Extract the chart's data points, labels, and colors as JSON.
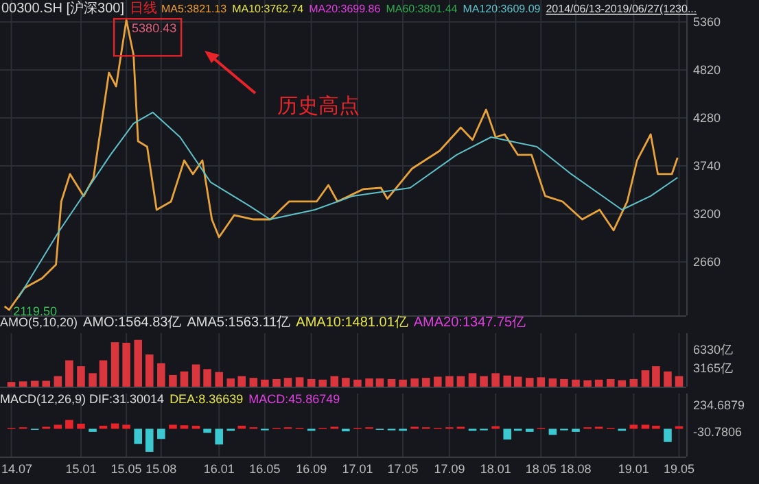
{
  "chart_data": [
    {
      "type": "line",
      "title": "00300.SH [沪深300]",
      "subtitle": "日线",
      "xlim": [
        "2014-06-01",
        "2019-05-20"
      ],
      "ylim": [
        2058,
        5607
      ],
      "yticks": [
        2660,
        3200,
        3740,
        4280,
        4820,
        5360
      ],
      "tick_labels": "y",
      "grid": true,
      "series": [
        {
          "color": "#e8a33d",
          "x": [
            "2014-06-13",
            "2014-06-25",
            "2014-08-05",
            "2014-09-20",
            "2014-10-27",
            "2014-11-10",
            "2014-12-03",
            "2015-01-08",
            "2015-02-03",
            "2015-03-16",
            "2015-04-04",
            "2015-05-01",
            "2015-05-20",
            "2015-06-01",
            "2015-06-25",
            "2015-07-20",
            "2015-08-27",
            "2015-10-01",
            "2015-10-24",
            "2015-11-18",
            "2015-12-13",
            "2016-01-01",
            "2016-02-10",
            "2016-04-01",
            "2016-05-16",
            "2016-07-04",
            "2016-09-15",
            "2016-10-16",
            "2016-11-09",
            "2017-01-16",
            "2017-03-04",
            "2017-03-21",
            "2017-05-25",
            "2017-08-06",
            "2017-10-01",
            "2017-11-01",
            "2017-12-07",
            "2018-01-01",
            "2018-01-25",
            "2018-03-01",
            "2018-04-06",
            "2018-05-12",
            "2018-06-27",
            "2018-08-18",
            "2018-10-03",
            "2018-11-09",
            "2018-12-15",
            "2019-01-10",
            "2019-02-15",
            "2019-03-06",
            "2019-04-12",
            "2019-04-27"
          ],
          "values": [
            2160,
            2119.5,
            2367,
            2475,
            2629,
            3339,
            3648,
            3400,
            3601,
            4789,
            4635,
            5380.43,
            4990,
            4018,
            3956,
            3246,
            3339,
            3802,
            3648,
            3802,
            3138,
            2938,
            3185,
            3138,
            3138,
            3339,
            3339,
            3524,
            3339,
            3478,
            3493,
            3370,
            3709,
            3910,
            4172,
            4033,
            4373,
            4064,
            4095,
            3864,
            3864,
            3401,
            3339,
            3138,
            3246,
            3015,
            3339,
            3802,
            4095,
            3648,
            3648,
            3833
          ]
        },
        {
          "name": "MA120:3609.09",
          "color": "#5fc1c9",
          "x": [
            "2014-07-20",
            "2014-11-01",
            "2015-03-20",
            "2015-05-20",
            "2015-07-10",
            "2015-09-20",
            "2015-12-10",
            "2016-03-20",
            "2016-05-15",
            "2016-09-10",
            "2016-12-20",
            "2017-05-20",
            "2017-09-20",
            "2017-12-20",
            "2018-04-20",
            "2018-07-20",
            "2018-12-01",
            "2019-02-15",
            "2019-04-27"
          ],
          "values": [
            2259,
            2984,
            3864,
            4218,
            4342,
            4064,
            3555,
            3293,
            3138,
            3246,
            3401,
            3493,
            3864,
            4064,
            3956,
            3648,
            3246,
            3401,
            3609.09
          ]
        }
      ],
      "annotations": [
        "MA5:3821.13",
        "MA10:3762.74",
        "MA20:3699.86",
        "MA60:3801.44",
        "2014/06/13-2019/06/27(1230...",
        "历史高点",
        {
          "text": "5380.43",
          "x": "2015-05-01",
          "y": 5380.43
        },
        {
          "text": "2119.50",
          "x": "2014-06-25",
          "y": 2119.5
        }
      ]
    },
    {
      "type": "bar",
      "xlim": [
        "2014-06-01",
        "2019-05-20"
      ],
      "ylim": [
        0,
        9140
      ],
      "yticks": [
        {
          "value": 3165,
          "label": "3165亿"
        },
        {
          "value": 6330,
          "label": "6330亿"
        }
      ],
      "tick_labels": "y",
      "grid": "x",
      "color": "#d9363e",
      "x": [
        "2014-07",
        "2014-08",
        "2014-09",
        "2014-10",
        "2014-11",
        "2014-12",
        "2015-01",
        "2015-02",
        "2015-03",
        "2015-04",
        "2015-05",
        "2015-06",
        "2015-07",
        "2015-08",
        "2015-09",
        "2015-10",
        "2015-11",
        "2015-12",
        "2016-01",
        "2016-02",
        "2016-03",
        "2016-04",
        "2016-05",
        "2016-06",
        "2016-07",
        "2016-08",
        "2016-09",
        "2016-10",
        "2016-11",
        "2016-12",
        "2017-01",
        "2017-02",
        "2017-03",
        "2017-04",
        "2017-05",
        "2017-06",
        "2017-07",
        "2017-08",
        "2017-09",
        "2017-10",
        "2017-11",
        "2017-12",
        "2018-01",
        "2018-02",
        "2018-03",
        "2018-04",
        "2018-05",
        "2018-06",
        "2018-07",
        "2018-08",
        "2018-09",
        "2018-10",
        "2018-11",
        "2018-12",
        "2019-01",
        "2019-02",
        "2019-03",
        "2019-04",
        "2019-05"
      ],
      "values": [
        800,
        900,
        1000,
        1000,
        1800,
        4500,
        3500,
        2300,
        4500,
        7600,
        7500,
        8000,
        5500,
        4000,
        2000,
        2600,
        3800,
        3000,
        2500,
        1400,
        1800,
        1500,
        1200,
        1300,
        1500,
        1600,
        1300,
        1200,
        1800,
        1500,
        1200,
        1400,
        1400,
        1300,
        1200,
        1400,
        1500,
        1700,
        1800,
        1800,
        2300,
        1800,
        2300,
        1900,
        1700,
        1500,
        1600,
        1400,
        1300,
        1200,
        1100,
        1200,
        1300,
        1100,
        1300,
        2800,
        3500,
        2600,
        1800
      ],
      "annotations": [
        "AMO(5,10,20)",
        "AMO:1564.83亿",
        "AMA5:1563.11亿",
        "AMA10:1481.01亿",
        "AMA20:1347.75亿"
      ]
    },
    {
      "type": "bar",
      "xlim": [
        "2014-06-01",
        "2019-05-20"
      ],
      "ylim": [
        -274,
        348
      ],
      "yticks": [
        -30.7806,
        234.6879
      ],
      "grid": "x",
      "xticks": [
        {
          "value": "2014-07",
          "label": "14.07"
        },
        {
          "value": "2015-01",
          "label": "15.01"
        },
        {
          "value": "2015-05",
          "label": "15.05"
        },
        {
          "value": "2015-08",
          "label": "15.08"
        },
        {
          "value": "2016-01",
          "label": "16.01"
        },
        {
          "value": "2016-05",
          "label": "16.05"
        },
        {
          "value": "2016-09",
          "label": "16.09"
        },
        {
          "value": "2017-01",
          "label": "17.01"
        },
        {
          "value": "2017-05",
          "label": "17.05"
        },
        {
          "value": "2017-09",
          "label": "17.09"
        },
        {
          "value": "2018-01",
          "label": "18.01"
        },
        {
          "value": "2018-05",
          "label": "18.05"
        },
        {
          "value": "2018-08",
          "label": "18.08"
        },
        {
          "value": "2019-01",
          "label": "19.01"
        },
        {
          "value": "2019-05",
          "label": "19.05"
        }
      ],
      "x": [
        "2014-07",
        "2014-08",
        "2014-09",
        "2014-10",
        "2014-11",
        "2014-12",
        "2015-01",
        "2015-02",
        "2015-03",
        "2015-04",
        "2015-05",
        "2015-06",
        "2015-07",
        "2015-08",
        "2015-09",
        "2015-10",
        "2015-11",
        "2015-12",
        "2016-01",
        "2016-02",
        "2016-03",
        "2016-04",
        "2016-05",
        "2016-06",
        "2016-07",
        "2016-08",
        "2016-09",
        "2016-10",
        "2016-11",
        "2016-12",
        "2017-01",
        "2017-02",
        "2017-03",
        "2017-04",
        "2017-05",
        "2017-06",
        "2017-07",
        "2017-08",
        "2017-09",
        "2017-10",
        "2017-11",
        "2017-12",
        "2018-01",
        "2018-02",
        "2018-03",
        "2018-04",
        "2018-05",
        "2018-06",
        "2018-07",
        "2018-08",
        "2018-09",
        "2018-10",
        "2018-11",
        "2018-12",
        "2019-01",
        "2019-02",
        "2019-03",
        "2019-04",
        "2019-05"
      ],
      "values": [
        10,
        15,
        -10,
        20,
        40,
        87,
        50,
        -30,
        30,
        53,
        40,
        -150,
        -227,
        -100,
        40,
        35,
        30,
        -40,
        -155,
        -20,
        30,
        15,
        -15,
        10,
        15,
        10,
        -20,
        10,
        20,
        -25,
        10,
        15,
        -10,
        -15,
        -20,
        20,
        15,
        10,
        15,
        20,
        -20,
        -15,
        25,
        -106,
        -20,
        -30,
        10,
        -60,
        -15,
        -30,
        15,
        20,
        10,
        -20,
        40,
        40,
        30,
        -130,
        25
      ],
      "colors": [
        "#e8242b",
        "#e8242b",
        "#3cc8d0",
        "#e8242b",
        "#e8242b",
        "#e8242b",
        "#e8242b",
        "#3cc8d0",
        "#e8242b",
        "#e8242b",
        "#e8242b",
        "#3cc8d0",
        "#3cc8d0",
        "#3cc8d0",
        "#e8242b",
        "#e8242b",
        "#e8242b",
        "#3cc8d0",
        "#3cc8d0",
        "#3cc8d0",
        "#e8242b",
        "#e8242b",
        "#3cc8d0",
        "#e8242b",
        "#e8242b",
        "#e8242b",
        "#3cc8d0",
        "#e8242b",
        "#e8242b",
        "#3cc8d0",
        "#e8242b",
        "#e8242b",
        "#3cc8d0",
        "#3cc8d0",
        "#3cc8d0",
        "#e8242b",
        "#e8242b",
        "#e8242b",
        "#e8242b",
        "#e8242b",
        "#3cc8d0",
        "#3cc8d0",
        "#e8242b",
        "#3cc8d0",
        "#3cc8d0",
        "#3cc8d0",
        "#e8242b",
        "#3cc8d0",
        "#3cc8d0",
        "#3cc8d0",
        "#e8242b",
        "#e8242b",
        "#e8242b",
        "#3cc8d0",
        "#e8242b",
        "#e8242b",
        "#e8242b",
        "#3cc8d0",
        "#e8242b"
      ],
      "annotations": [
        "MACD(12,26,9) DIF:31.30014",
        "DEA:8.36639",
        "MACD:45.86749"
      ]
    }
  ]
}
